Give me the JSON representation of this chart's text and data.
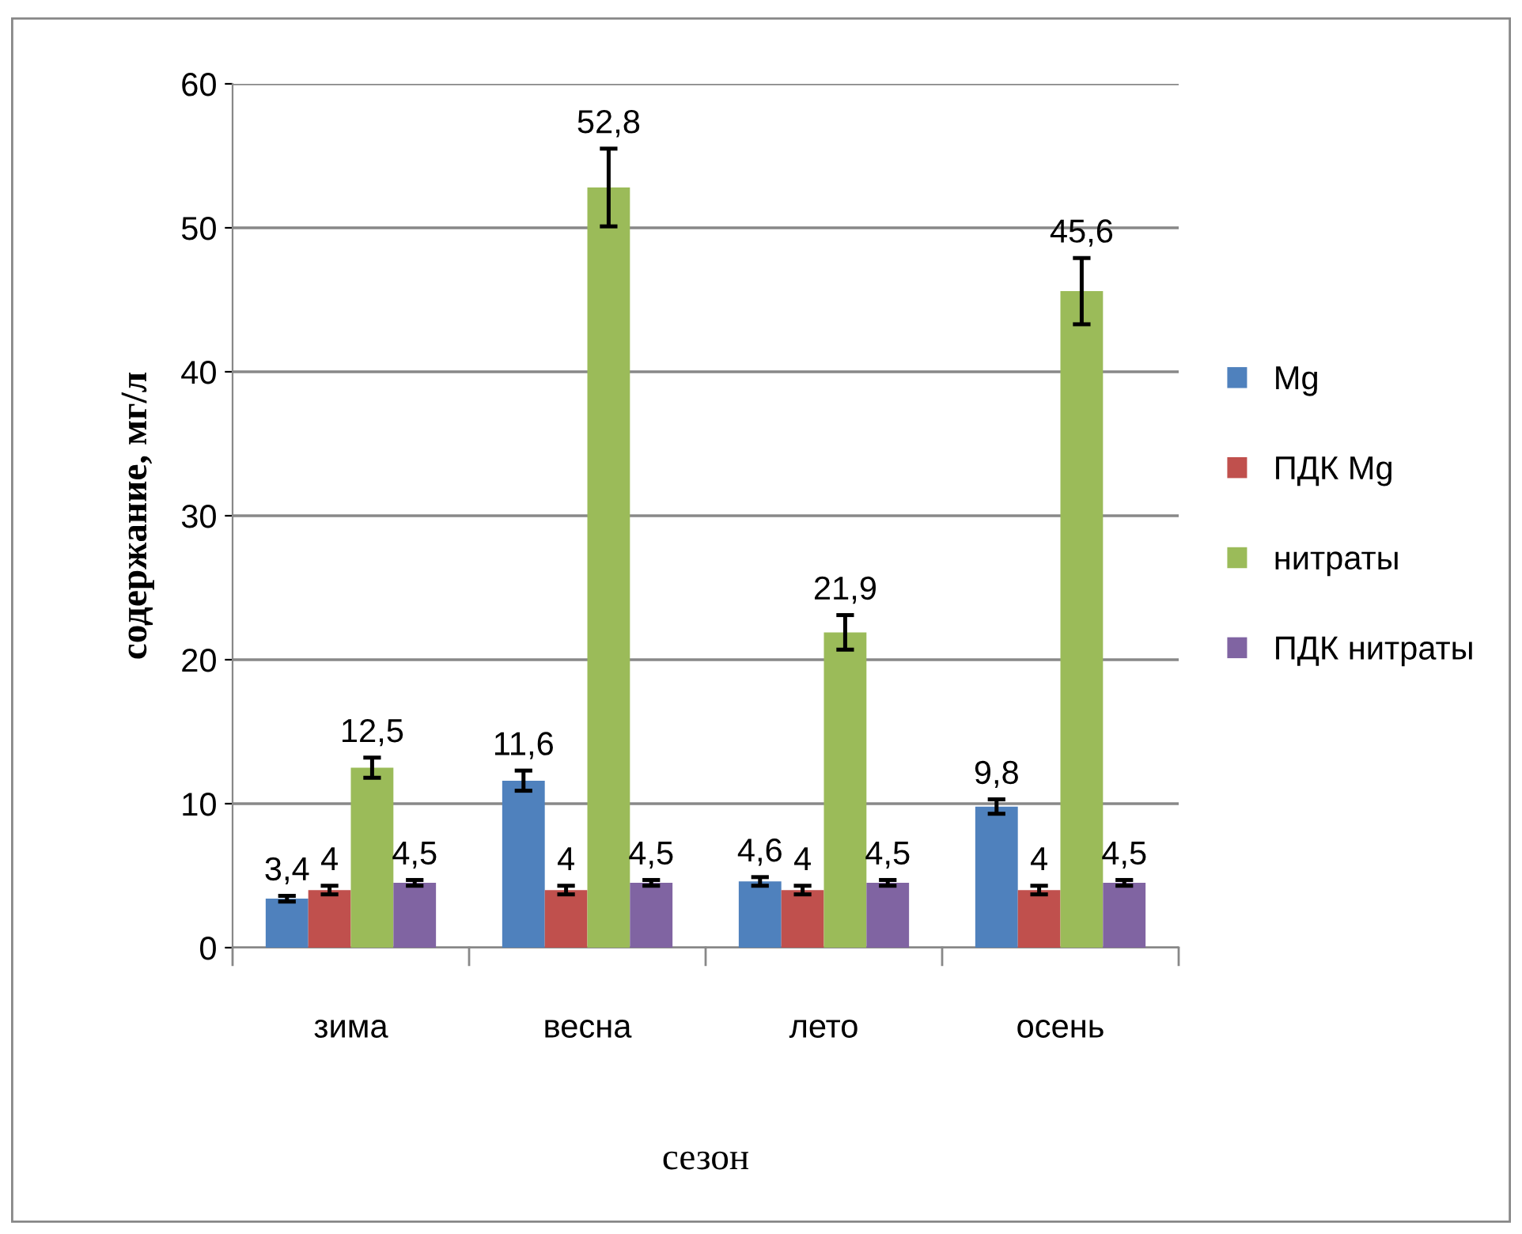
{
  "chart_data": {
    "type": "bar",
    "xlabel": "сезон",
    "ylabel": "содержание, мг/л",
    "categories": [
      "зима",
      "весна",
      "лето",
      "осень"
    ],
    "series": [
      {
        "name": "Mg",
        "color": "#4f81bd",
        "values": [
          3.4,
          11.6,
          4.6,
          9.8
        ],
        "errors": [
          0.2,
          0.7,
          0.3,
          0.5
        ],
        "value_labels": [
          "3,4",
          "11,6",
          "4,6",
          "9,8"
        ]
      },
      {
        "name": "ПДК Mg",
        "color": "#c0504d",
        "values": [
          4,
          4,
          4,
          4
        ],
        "errors": [
          0.3,
          0.3,
          0.3,
          0.3
        ],
        "value_labels": [
          "4",
          "4",
          "4",
          "4"
        ]
      },
      {
        "name": "нитраты",
        "color": "#9bbb59",
        "values": [
          12.5,
          52.8,
          21.9,
          45.6
        ],
        "errors": [
          0.7,
          2.7,
          1.2,
          2.3
        ],
        "value_labels": [
          "12,5",
          "52,8",
          "21,9",
          "45,6"
        ]
      },
      {
        "name": "ПДК нитраты",
        "color": "#8064a2",
        "values": [
          4.5,
          4.5,
          4.5,
          4.5
        ],
        "errors": [
          0.2,
          0.2,
          0.2,
          0.2
        ],
        "value_labels": [
          "4,5",
          "4,5",
          "4,5",
          "4,5"
        ]
      }
    ],
    "ylim": [
      0,
      60
    ],
    "yticks": [
      0,
      10,
      20,
      30,
      40,
      50,
      60
    ],
    "grid": "y",
    "legend": "right"
  }
}
